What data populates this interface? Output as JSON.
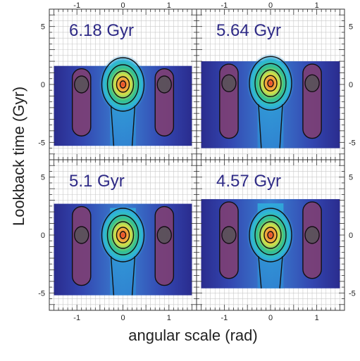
{
  "chart_data": {
    "type": "heatmap",
    "ylabel": "Lookback time (Gyr)",
    "xlabel": "angular scale (rad)",
    "x_ticks": [
      -1,
      0,
      1
    ],
    "y_ticks": [
      5,
      0,
      -5
    ],
    "xlim": [
      -1.6,
      1.6
    ],
    "ylim": [
      -6.5,
      6.5
    ],
    "grid": true,
    "colormap": [
      "#2b2f9a",
      "#2f6fd0",
      "#2fb6d8",
      "#38c28a",
      "#cfe04a",
      "#f6a13a",
      "#e8402a"
    ],
    "side_lobe_color": "#7e3f73",
    "panels": [
      {
        "title": "6.18 Gyr",
        "time_range": [
          -5.3,
          1.6
        ],
        "peak_time": 0.0
      },
      {
        "title": "5.64 Gyr",
        "time_range": [
          -5.5,
          2.0
        ],
        "peak_time": 0.1
      },
      {
        "title": "5.1 Gyr",
        "time_range": [
          -5.2,
          2.7
        ],
        "peak_time": 0.0
      },
      {
        "title": "4.57 Gyr",
        "time_range": [
          -4.6,
          3.1
        ],
        "peak_time": 0.0
      }
    ]
  }
}
